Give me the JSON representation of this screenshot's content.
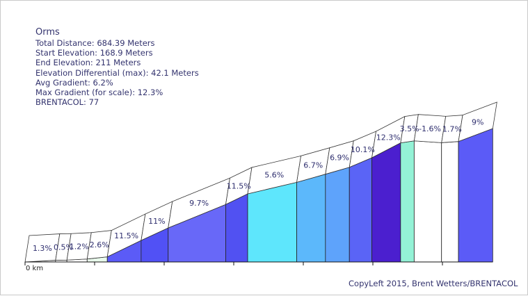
{
  "info": {
    "title": "Orms",
    "total_distance": "Total Distance: 684.39 Meters",
    "start_elevation": "Start Elevation: 168.9 Meters",
    "end_elevation": "End Elevation: 211 Meters",
    "elevation_differential": "Elevation Differential (max): 42.1 Meters",
    "avg_gradient": "Avg Gradient: 6.2%",
    "max_gradient": "Max Gradient (for scale): 12.3%",
    "brentacol": "BRENTACOL: 77"
  },
  "footer": {
    "copyright": "CopyLeft 2015, Brent Wetters/BRENTACOL"
  },
  "chart_data": {
    "type": "area",
    "x_tick_label": "0 km",
    "ylim": [
      168.9,
      211.8
    ],
    "segments": [
      {
        "x0": 0,
        "x1": 27.4,
        "e0": 168.9,
        "e1": 169.26,
        "grade": "1.3%",
        "color": "#ffffff"
      },
      {
        "x0": 27.4,
        "x1": 37.6,
        "e0": 169.26,
        "e1": 169.31,
        "grade": "0.5%",
        "color": "#ffffff"
      },
      {
        "x0": 37.6,
        "x1": 55.8,
        "e0": 169.31,
        "e1": 169.53,
        "grade": "1.2%",
        "color": "#ffffff"
      },
      {
        "x0": 55.8,
        "x1": 73.9,
        "e0": 169.53,
        "e1": 170.0,
        "grade": "2.6%",
        "color": "#e9fbec"
      },
      {
        "x0": 73.9,
        "x1": 104.3,
        "e0": 170.0,
        "e1": 173.5,
        "grade": "11.5%",
        "color": "#5b5bf7"
      },
      {
        "x0": 104.3,
        "x1": 128.6,
        "e0": 173.5,
        "e1": 176.17,
        "grade": "11%",
        "color": "#5151f5"
      },
      {
        "x0": 128.6,
        "x1": 180.3,
        "e0": 176.17,
        "e1": 181.19,
        "grade": "9.7%",
        "color": "#6868f8"
      },
      {
        "x0": 180.3,
        "x1": 200.0,
        "e0": 181.19,
        "e1": 183.45,
        "grade": "11.5%",
        "color": "#5151f2"
      },
      {
        "x0": 200.0,
        "x1": 244.1,
        "e0": 183.45,
        "e1": 185.92,
        "grade": "5.6%",
        "color": "#5ee6fc"
      },
      {
        "x0": 244.1,
        "x1": 269.9,
        "e0": 185.92,
        "e1": 187.65,
        "grade": "6.7%",
        "color": "#5cb8fb"
      },
      {
        "x0": 269.9,
        "x1": 291.4,
        "e0": 187.65,
        "e1": 189.13,
        "grade": "6.9%",
        "color": "#5ea3fb"
      },
      {
        "x0": 291.4,
        "x1": 311.6,
        "e0": 189.13,
        "e1": 191.17,
        "grade": "10.1%",
        "color": "#5a64f6"
      },
      {
        "x0": 311.6,
        "x1": 337.4,
        "e0": 191.17,
        "e1": 194.34,
        "grade": "12.3%",
        "color": "#4b1fcf"
      },
      {
        "x0": 337.4,
        "x1": 349.6,
        "e0": 194.34,
        "e1": 194.77,
        "grade": "3.5%",
        "color": "#94f2d6"
      },
      {
        "x0": 349.6,
        "x1": 374.2,
        "e0": 194.77,
        "e1": 194.38,
        "grade": "-1.6%",
        "color": "#ffffff"
      },
      {
        "x0": 374.2,
        "x1": 389.4,
        "e0": 194.38,
        "e1": 194.63,
        "grade": "1.7%",
        "color": "#ffffff"
      },
      {
        "x0": 389.4,
        "x1": 420.2,
        "e0": 194.63,
        "e1": 197.4,
        "grade": "9%",
        "color": "#5b5bf7"
      }
    ]
  }
}
